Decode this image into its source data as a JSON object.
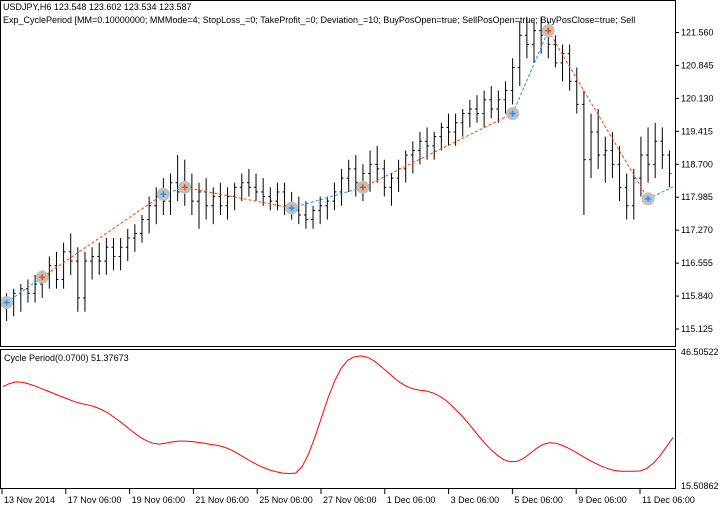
{
  "header": {
    "symbol_line": "USDJPY,H6  123.548 123.602 123.534 123.587",
    "expert_line": "Exp_CyclePeriod [MM=0.10000000; MMMode=4; StopLoss_=0; TakeProfit_=0; Deviation_=10; BuyPosOpen=true; SellPosOpen=true; BuyPosClose=true; Sell"
  },
  "indicator": {
    "label": "Cycle Period(0.0700) 51.37673"
  },
  "colors": {
    "background": "#ffffff",
    "bars": "#000000",
    "indicator_line": "#ff0000",
    "sell_trade_line": "#ff4500",
    "buy_trade_line": "#1e90ff",
    "signal_circle": "#c0c0c0"
  },
  "chart_data": [
    {
      "type": "ohlc",
      "symbol": "USDJPY",
      "timeframe": "H6",
      "ylim": [
        114.8,
        122.2
      ],
      "y_ticks": [
        "121.560",
        "120.845",
        "120.130",
        "119.415",
        "118.700",
        "117.985",
        "117.270",
        "116.555",
        "115.840",
        "115.125"
      ],
      "x_ticks": [
        "13 Nov 2014",
        "17 Nov 06:00",
        "19 Nov 06:00",
        "21 Nov 06:00",
        "25 Nov 06:00",
        "27 Nov 06:00",
        "1 Dec 06:00",
        "3 Dec 06:00",
        "5 Dec 06:00",
        "9 Dec 06:00",
        "11 Dec 06:00"
      ],
      "bars": [
        {
          "o": 115.6,
          "h": 115.9,
          "l": 115.3,
          "c": 115.7
        },
        {
          "o": 115.7,
          "h": 116.0,
          "l": 115.4,
          "c": 115.9
        },
        {
          "o": 115.9,
          "h": 116.1,
          "l": 115.5,
          "c": 116.0
        },
        {
          "o": 116.0,
          "h": 116.2,
          "l": 115.7,
          "c": 115.9
        },
        {
          "o": 115.9,
          "h": 116.3,
          "l": 115.7,
          "c": 116.1
        },
        {
          "o": 116.1,
          "h": 116.4,
          "l": 115.8,
          "c": 116.3
        },
        {
          "o": 116.3,
          "h": 116.7,
          "l": 116.0,
          "c": 116.5
        },
        {
          "o": 116.5,
          "h": 116.8,
          "l": 116.0,
          "c": 116.2
        },
        {
          "o": 116.2,
          "h": 117.0,
          "l": 116.0,
          "c": 116.8
        },
        {
          "o": 116.8,
          "h": 117.2,
          "l": 116.3,
          "c": 116.6
        },
        {
          "o": 116.6,
          "h": 116.9,
          "l": 115.5,
          "c": 115.8
        },
        {
          "o": 115.8,
          "h": 116.8,
          "l": 115.5,
          "c": 116.6
        },
        {
          "o": 116.6,
          "h": 116.9,
          "l": 116.2,
          "c": 116.7
        },
        {
          "o": 116.7,
          "h": 117.0,
          "l": 116.3,
          "c": 116.6
        },
        {
          "o": 116.6,
          "h": 117.1,
          "l": 116.3,
          "c": 116.9
        },
        {
          "o": 116.9,
          "h": 117.1,
          "l": 116.4,
          "c": 116.7
        },
        {
          "o": 116.7,
          "h": 117.1,
          "l": 116.4,
          "c": 116.9
        },
        {
          "o": 116.9,
          "h": 117.3,
          "l": 116.6,
          "c": 117.1
        },
        {
          "o": 117.1,
          "h": 117.4,
          "l": 116.8,
          "c": 117.2
        },
        {
          "o": 117.2,
          "h": 117.6,
          "l": 117.0,
          "c": 117.5
        },
        {
          "o": 117.5,
          "h": 118.0,
          "l": 117.2,
          "c": 117.8
        },
        {
          "o": 117.8,
          "h": 118.2,
          "l": 117.4,
          "c": 118.0
        },
        {
          "o": 118.0,
          "h": 118.4,
          "l": 117.6,
          "c": 117.9
        },
        {
          "o": 117.9,
          "h": 118.5,
          "l": 117.6,
          "c": 118.3
        },
        {
          "o": 118.3,
          "h": 118.9,
          "l": 117.9,
          "c": 118.1
        },
        {
          "o": 118.1,
          "h": 118.8,
          "l": 117.8,
          "c": 118.2
        },
        {
          "o": 118.2,
          "h": 118.5,
          "l": 117.6,
          "c": 117.9
        },
        {
          "o": 117.9,
          "h": 118.3,
          "l": 117.3,
          "c": 118.1
        },
        {
          "o": 118.1,
          "h": 118.4,
          "l": 117.5,
          "c": 117.8
        },
        {
          "o": 117.8,
          "h": 118.2,
          "l": 117.4,
          "c": 118.0
        },
        {
          "o": 118.0,
          "h": 118.3,
          "l": 117.6,
          "c": 117.8
        },
        {
          "o": 117.8,
          "h": 118.2,
          "l": 117.5,
          "c": 118.0
        },
        {
          "o": 118.0,
          "h": 118.3,
          "l": 117.7,
          "c": 118.2
        },
        {
          "o": 118.2,
          "h": 118.5,
          "l": 117.9,
          "c": 118.3
        },
        {
          "o": 118.3,
          "h": 118.6,
          "l": 118.0,
          "c": 118.2
        },
        {
          "o": 118.2,
          "h": 118.5,
          "l": 117.9,
          "c": 118.1
        },
        {
          "o": 118.1,
          "h": 118.4,
          "l": 117.8,
          "c": 118.0
        },
        {
          "o": 118.0,
          "h": 118.2,
          "l": 117.7,
          "c": 117.9
        },
        {
          "o": 117.9,
          "h": 118.3,
          "l": 117.7,
          "c": 118.1
        },
        {
          "o": 118.1,
          "h": 118.3,
          "l": 117.6,
          "c": 117.8
        },
        {
          "o": 117.8,
          "h": 118.1,
          "l": 117.5,
          "c": 117.7
        },
        {
          "o": 117.7,
          "h": 118.0,
          "l": 117.4,
          "c": 117.6
        },
        {
          "o": 117.6,
          "h": 117.9,
          "l": 117.3,
          "c": 117.5
        },
        {
          "o": 117.5,
          "h": 117.8,
          "l": 117.3,
          "c": 117.7
        },
        {
          "o": 117.7,
          "h": 118.0,
          "l": 117.4,
          "c": 117.8
        },
        {
          "o": 117.8,
          "h": 118.0,
          "l": 117.5,
          "c": 117.9
        },
        {
          "o": 117.9,
          "h": 118.3,
          "l": 117.7,
          "c": 118.1
        },
        {
          "o": 118.1,
          "h": 118.6,
          "l": 117.8,
          "c": 118.4
        },
        {
          "o": 118.4,
          "h": 118.8,
          "l": 118.1,
          "c": 118.6
        },
        {
          "o": 118.6,
          "h": 118.9,
          "l": 118.0,
          "c": 118.3
        },
        {
          "o": 118.3,
          "h": 118.7,
          "l": 117.9,
          "c": 118.5
        },
        {
          "o": 118.5,
          "h": 119.0,
          "l": 118.1,
          "c": 118.7
        },
        {
          "o": 118.7,
          "h": 119.1,
          "l": 118.3,
          "c": 118.6
        },
        {
          "o": 118.6,
          "h": 118.8,
          "l": 118.0,
          "c": 118.2
        },
        {
          "o": 118.2,
          "h": 118.5,
          "l": 117.8,
          "c": 118.4
        },
        {
          "o": 118.4,
          "h": 118.8,
          "l": 118.1,
          "c": 118.6
        },
        {
          "o": 118.6,
          "h": 119.0,
          "l": 118.3,
          "c": 118.9
        },
        {
          "o": 118.9,
          "h": 119.2,
          "l": 118.5,
          "c": 119.0
        },
        {
          "o": 119.0,
          "h": 119.4,
          "l": 118.7,
          "c": 119.2
        },
        {
          "o": 119.2,
          "h": 119.5,
          "l": 118.8,
          "c": 119.1
        },
        {
          "o": 119.1,
          "h": 119.4,
          "l": 118.8,
          "c": 119.3
        },
        {
          "o": 119.3,
          "h": 119.6,
          "l": 119.0,
          "c": 119.5
        },
        {
          "o": 119.5,
          "h": 119.8,
          "l": 119.1,
          "c": 119.4
        },
        {
          "o": 119.4,
          "h": 119.8,
          "l": 119.1,
          "c": 119.6
        },
        {
          "o": 119.6,
          "h": 119.9,
          "l": 119.3,
          "c": 119.8
        },
        {
          "o": 119.8,
          "h": 120.1,
          "l": 119.5,
          "c": 119.9
        },
        {
          "o": 119.9,
          "h": 120.2,
          "l": 119.6,
          "c": 119.8
        },
        {
          "o": 119.8,
          "h": 120.3,
          "l": 119.5,
          "c": 120.1
        },
        {
          "o": 120.1,
          "h": 120.4,
          "l": 119.7,
          "c": 119.9
        },
        {
          "o": 119.9,
          "h": 120.3,
          "l": 119.6,
          "c": 120.1
        },
        {
          "o": 120.1,
          "h": 120.5,
          "l": 119.8,
          "c": 120.3
        },
        {
          "o": 120.3,
          "h": 121.0,
          "l": 120.0,
          "c": 120.8
        },
        {
          "o": 120.8,
          "h": 121.8,
          "l": 120.4,
          "c": 121.5
        },
        {
          "o": 121.5,
          "h": 121.9,
          "l": 121.0,
          "c": 121.3
        },
        {
          "o": 121.3,
          "h": 121.8,
          "l": 120.9,
          "c": 121.6
        },
        {
          "o": 121.6,
          "h": 121.9,
          "l": 121.1,
          "c": 121.5
        },
        {
          "o": 121.5,
          "h": 121.8,
          "l": 121.0,
          "c": 121.3
        },
        {
          "o": 121.3,
          "h": 121.5,
          "l": 120.8,
          "c": 120.9
        },
        {
          "o": 120.9,
          "h": 121.3,
          "l": 120.5,
          "c": 121.1
        },
        {
          "o": 121.1,
          "h": 121.3,
          "l": 120.3,
          "c": 120.5
        },
        {
          "o": 120.5,
          "h": 120.8,
          "l": 119.8,
          "c": 120.0
        },
        {
          "o": 120.0,
          "h": 120.3,
          "l": 117.6,
          "c": 118.8
        },
        {
          "o": 118.8,
          "h": 119.8,
          "l": 118.4,
          "c": 119.4
        },
        {
          "o": 119.4,
          "h": 119.9,
          "l": 118.6,
          "c": 118.9
        },
        {
          "o": 118.9,
          "h": 119.3,
          "l": 118.3,
          "c": 119.0
        },
        {
          "o": 119.0,
          "h": 119.4,
          "l": 118.4,
          "c": 118.7
        },
        {
          "o": 118.7,
          "h": 119.1,
          "l": 117.9,
          "c": 118.2
        },
        {
          "o": 118.2,
          "h": 118.5,
          "l": 117.5,
          "c": 117.8
        },
        {
          "o": 117.8,
          "h": 118.6,
          "l": 117.5,
          "c": 118.4
        },
        {
          "o": 118.4,
          "h": 119.3,
          "l": 118.0,
          "c": 118.9
        },
        {
          "o": 118.9,
          "h": 119.5,
          "l": 118.3,
          "c": 118.7
        },
        {
          "o": 118.7,
          "h": 119.6,
          "l": 118.4,
          "c": 119.2
        },
        {
          "o": 119.2,
          "h": 119.5,
          "l": 118.6,
          "c": 118.9
        },
        {
          "o": 118.9,
          "h": 119.0,
          "l": 118.2,
          "c": 118.5
        }
      ],
      "trades": [
        {
          "type": "buy",
          "bar": 0,
          "price": 115.7
        },
        {
          "type": "sell",
          "bar": 5,
          "price": 116.25
        },
        {
          "type": "buy",
          "bar": 22,
          "price": 118.05
        },
        {
          "type": "sell",
          "bar": 25,
          "price": 118.2
        },
        {
          "type": "buy",
          "bar": 40,
          "price": 117.75
        },
        {
          "type": "sell",
          "bar": 50,
          "price": 118.2
        },
        {
          "type": "buy",
          "bar": 71,
          "price": 119.8
        },
        {
          "type": "sell",
          "bar": 76,
          "price": 121.6
        },
        {
          "type": "buy",
          "bar": 90,
          "price": 117.95
        }
      ]
    },
    {
      "type": "line",
      "name": "Cycle Period(0.0700)",
      "ylim": [
        15.50862,
        46.50522
      ],
      "y_ticks": [
        "46.50522",
        "15.50862"
      ],
      "values": [
        38.5,
        39.2,
        39.6,
        39.5,
        39.1,
        38.6,
        38.0,
        37.4,
        36.8,
        36.2,
        35.6,
        35.0,
        34.6,
        34.3,
        33.9,
        33.3,
        32.5,
        31.5,
        30.4,
        29.2,
        28.0,
        26.9,
        26.0,
        25.4,
        25.2,
        25.4,
        25.7,
        25.9,
        25.9,
        25.8,
        25.6,
        25.4,
        25.1,
        24.9,
        24.5,
        23.9,
        23.1,
        22.2,
        21.3,
        20.5,
        19.8,
        19.2,
        18.8,
        18.5,
        18.4,
        18.5,
        20.0,
        23.0,
        27.0,
        31.5,
        36.0,
        39.8,
        42.8,
        44.6,
        45.4,
        45.6,
        45.3,
        44.5,
        43.3,
        42.0,
        40.7,
        39.5,
        38.6,
        38.0,
        37.7,
        37.5,
        37.1,
        36.4,
        35.4,
        34.1,
        32.6,
        31.0,
        29.2,
        27.3,
        25.5,
        23.9,
        22.6,
        21.6,
        21.1,
        21.2,
        21.9,
        23.0,
        24.2,
        25.1,
        25.5,
        25.4,
        24.9,
        24.2,
        23.4,
        22.5,
        21.6,
        20.8,
        20.1,
        19.5,
        19.1,
        18.9,
        18.9,
        18.9,
        19.0,
        19.6,
        20.8,
        22.5,
        24.6,
        26.7
      ]
    }
  ]
}
